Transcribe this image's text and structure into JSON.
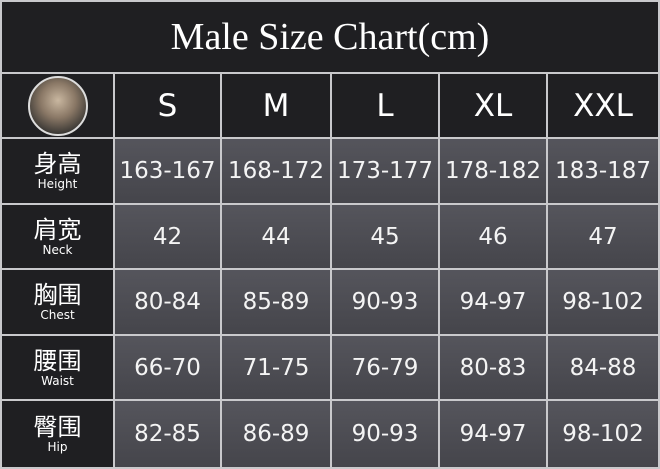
{
  "header": {
    "title": "Male Size Chart(cm)"
  },
  "table": {
    "columns": [
      "S",
      "M",
      "L",
      "XL",
      "XXL"
    ],
    "rows": [
      {
        "label_cn": "身高",
        "label_en": "Height",
        "values": [
          "163-167",
          "168-172",
          "173-177",
          "178-182",
          "183-187"
        ]
      },
      {
        "label_cn": "肩宽",
        "label_en": "Neck",
        "values": [
          "42",
          "44",
          "45",
          "46",
          "47"
        ]
      },
      {
        "label_cn": "胸围",
        "label_en": "Chest",
        "values": [
          "80-84",
          "85-89",
          "90-93",
          "94-97",
          "98-102"
        ]
      },
      {
        "label_cn": "腰围",
        "label_en": "Waist",
        "values": [
          "66-70",
          "71-75",
          "76-79",
          "80-83",
          "84-88"
        ]
      },
      {
        "label_cn": "臀围",
        "label_en": "Hip",
        "values": [
          "82-85",
          "86-89",
          "90-93",
          "94-97",
          "98-102"
        ]
      }
    ]
  }
}
